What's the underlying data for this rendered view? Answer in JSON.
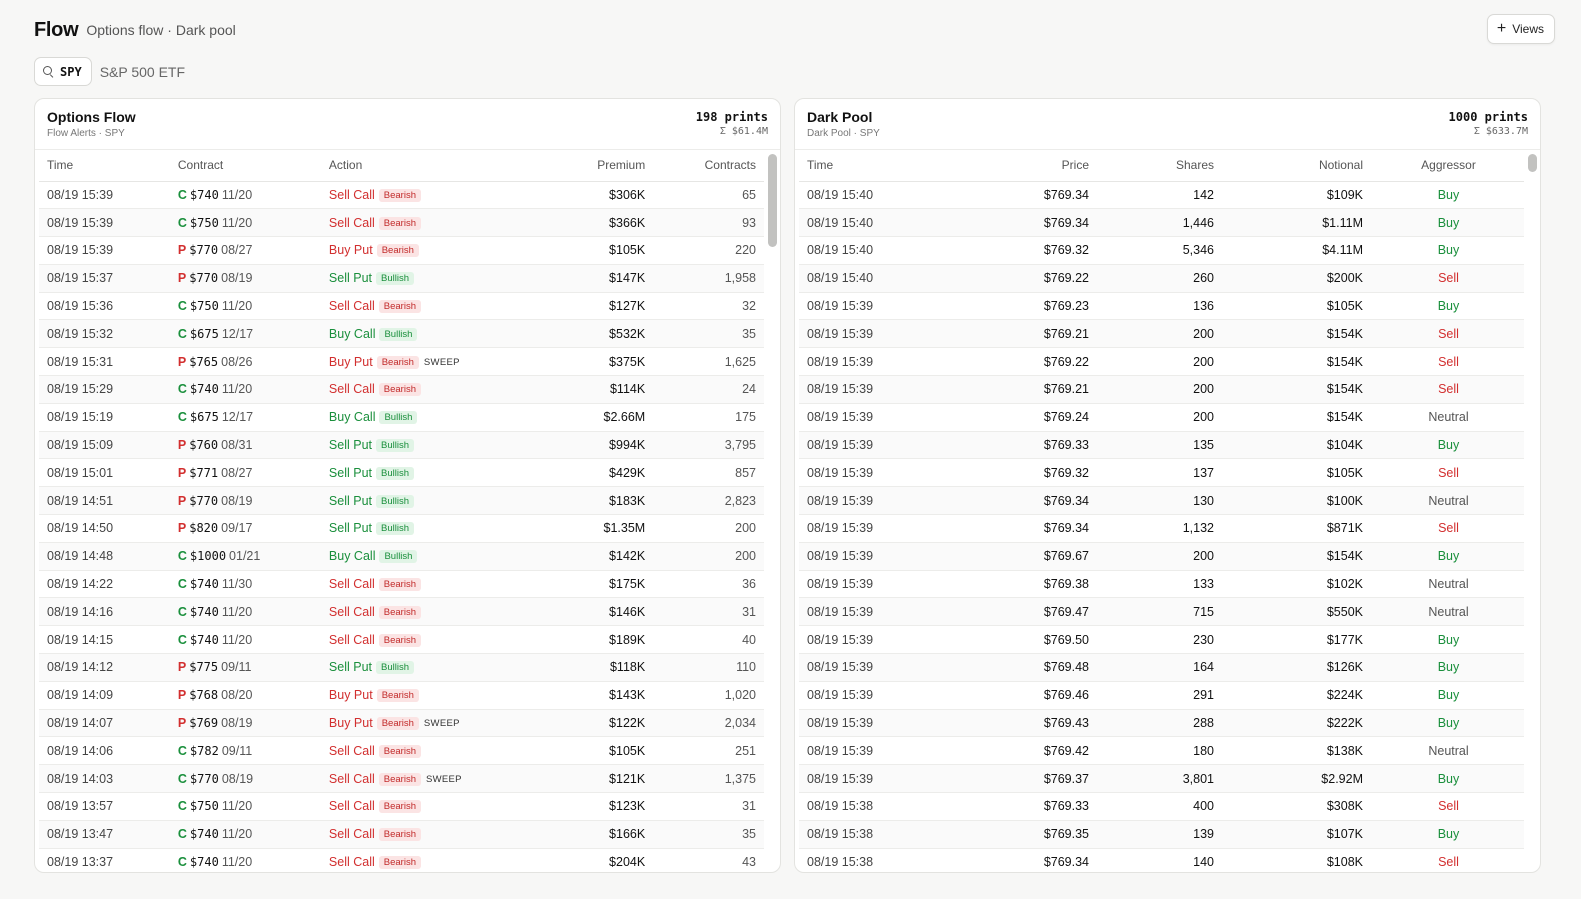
{
  "header": {
    "title": "Flow",
    "subtitle": "Options flow · Dark pool",
    "views_label": "Views"
  },
  "ticker": {
    "symbol": "SPY",
    "name": "S&P 500 ETF"
  },
  "options_panel": {
    "title": "Options Flow",
    "subtitle": "Flow Alerts · SPY",
    "count": "198 prints",
    "sum": "Σ $61.4M",
    "columns": [
      "Time",
      "Contract",
      "Action",
      "Premium",
      "Contracts"
    ],
    "rows": [
      {
        "time": "08/19 15:39",
        "side": "C",
        "strike": "$740",
        "exp": "11/20",
        "action": "Sell Call",
        "sentiment": "Bearish",
        "sweep": "",
        "premium": "$306K",
        "contracts": "65"
      },
      {
        "time": "08/19 15:39",
        "side": "C",
        "strike": "$750",
        "exp": "11/20",
        "action": "Sell Call",
        "sentiment": "Bearish",
        "sweep": "",
        "premium": "$366K",
        "contracts": "93"
      },
      {
        "time": "08/19 15:39",
        "side": "P",
        "strike": "$770",
        "exp": "08/27",
        "action": "Buy Put",
        "sentiment": "Bearish",
        "sweep": "",
        "premium": "$105K",
        "contracts": "220"
      },
      {
        "time": "08/19 15:37",
        "side": "P",
        "strike": "$770",
        "exp": "08/19",
        "action": "Sell Put",
        "sentiment": "Bullish",
        "sweep": "",
        "premium": "$147K",
        "contracts": "1,958"
      },
      {
        "time": "08/19 15:36",
        "side": "C",
        "strike": "$750",
        "exp": "11/20",
        "action": "Sell Call",
        "sentiment": "Bearish",
        "sweep": "",
        "premium": "$127K",
        "contracts": "32"
      },
      {
        "time": "08/19 15:32",
        "side": "C",
        "strike": "$675",
        "exp": "12/17",
        "action": "Buy Call",
        "sentiment": "Bullish",
        "sweep": "",
        "premium": "$532K",
        "contracts": "35"
      },
      {
        "time": "08/19 15:31",
        "side": "P",
        "strike": "$765",
        "exp": "08/26",
        "action": "Buy Put",
        "sentiment": "Bearish",
        "sweep": "SWEEP",
        "premium": "$375K",
        "contracts": "1,625"
      },
      {
        "time": "08/19 15:29",
        "side": "C",
        "strike": "$740",
        "exp": "11/20",
        "action": "Sell Call",
        "sentiment": "Bearish",
        "sweep": "",
        "premium": "$114K",
        "contracts": "24"
      },
      {
        "time": "08/19 15:19",
        "side": "C",
        "strike": "$675",
        "exp": "12/17",
        "action": "Buy Call",
        "sentiment": "Bullish",
        "sweep": "",
        "premium": "$2.66M",
        "contracts": "175"
      },
      {
        "time": "08/19 15:09",
        "side": "P",
        "strike": "$760",
        "exp": "08/31",
        "action": "Sell Put",
        "sentiment": "Bullish",
        "sweep": "",
        "premium": "$994K",
        "contracts": "3,795"
      },
      {
        "time": "08/19 15:01",
        "side": "P",
        "strike": "$771",
        "exp": "08/27",
        "action": "Sell Put",
        "sentiment": "Bullish",
        "sweep": "",
        "premium": "$429K",
        "contracts": "857"
      },
      {
        "time": "08/19 14:51",
        "side": "P",
        "strike": "$770",
        "exp": "08/19",
        "action": "Sell Put",
        "sentiment": "Bullish",
        "sweep": "",
        "premium": "$183K",
        "contracts": "2,823"
      },
      {
        "time": "08/19 14:50",
        "side": "P",
        "strike": "$820",
        "exp": "09/17",
        "action": "Sell Put",
        "sentiment": "Bullish",
        "sweep": "",
        "premium": "$1.35M",
        "contracts": "200"
      },
      {
        "time": "08/19 14:48",
        "side": "C",
        "strike": "$1000",
        "exp": "01/21",
        "action": "Buy Call",
        "sentiment": "Bullish",
        "sweep": "",
        "premium": "$142K",
        "contracts": "200"
      },
      {
        "time": "08/19 14:22",
        "side": "C",
        "strike": "$740",
        "exp": "11/30",
        "action": "Sell Call",
        "sentiment": "Bearish",
        "sweep": "",
        "premium": "$175K",
        "contracts": "36"
      },
      {
        "time": "08/19 14:16",
        "side": "C",
        "strike": "$740",
        "exp": "11/20",
        "action": "Sell Call",
        "sentiment": "Bearish",
        "sweep": "",
        "premium": "$146K",
        "contracts": "31"
      },
      {
        "time": "08/19 14:15",
        "side": "C",
        "strike": "$740",
        "exp": "11/20",
        "action": "Sell Call",
        "sentiment": "Bearish",
        "sweep": "",
        "premium": "$189K",
        "contracts": "40"
      },
      {
        "time": "08/19 14:12",
        "side": "P",
        "strike": "$775",
        "exp": "09/11",
        "action": "Sell Put",
        "sentiment": "Bullish",
        "sweep": "",
        "premium": "$118K",
        "contracts": "110"
      },
      {
        "time": "08/19 14:09",
        "side": "P",
        "strike": "$768",
        "exp": "08/20",
        "action": "Buy Put",
        "sentiment": "Bearish",
        "sweep": "",
        "premium": "$143K",
        "contracts": "1,020"
      },
      {
        "time": "08/19 14:07",
        "side": "P",
        "strike": "$769",
        "exp": "08/19",
        "action": "Buy Put",
        "sentiment": "Bearish",
        "sweep": "SWEEP",
        "premium": "$122K",
        "contracts": "2,034"
      },
      {
        "time": "08/19 14:06",
        "side": "C",
        "strike": "$782",
        "exp": "09/11",
        "action": "Sell Call",
        "sentiment": "Bearish",
        "sweep": "",
        "premium": "$105K",
        "contracts": "251"
      },
      {
        "time": "08/19 14:03",
        "side": "C",
        "strike": "$770",
        "exp": "08/19",
        "action": "Sell Call",
        "sentiment": "Bearish",
        "sweep": "SWEEP",
        "premium": "$121K",
        "contracts": "1,375"
      },
      {
        "time": "08/19 13:57",
        "side": "C",
        "strike": "$750",
        "exp": "11/20",
        "action": "Sell Call",
        "sentiment": "Bearish",
        "sweep": "",
        "premium": "$123K",
        "contracts": "31"
      },
      {
        "time": "08/19 13:47",
        "side": "C",
        "strike": "$740",
        "exp": "11/20",
        "action": "Sell Call",
        "sentiment": "Bearish",
        "sweep": "",
        "premium": "$166K",
        "contracts": "35"
      },
      {
        "time": "08/19 13:37",
        "side": "C",
        "strike": "$740",
        "exp": "11/20",
        "action": "Sell Call",
        "sentiment": "Bearish",
        "sweep": "",
        "premium": "$204K",
        "contracts": "43"
      }
    ]
  },
  "darkpool_panel": {
    "title": "Dark Pool",
    "subtitle": "Dark Pool · SPY",
    "count": "1000 prints",
    "sum": "Σ $633.7M",
    "columns": [
      "Time",
      "Price",
      "Shares",
      "Notional",
      "Aggressor"
    ],
    "rows": [
      {
        "time": "08/19 15:40",
        "price": "$769.34",
        "shares": "142",
        "notional": "$109K",
        "aggressor": "Buy"
      },
      {
        "time": "08/19 15:40",
        "price": "$769.34",
        "shares": "1,446",
        "notional": "$1.11M",
        "aggressor": "Buy"
      },
      {
        "time": "08/19 15:40",
        "price": "$769.32",
        "shares": "5,346",
        "notional": "$4.11M",
        "aggressor": "Buy"
      },
      {
        "time": "08/19 15:40",
        "price": "$769.22",
        "shares": "260",
        "notional": "$200K",
        "aggressor": "Sell"
      },
      {
        "time": "08/19 15:39",
        "price": "$769.23",
        "shares": "136",
        "notional": "$105K",
        "aggressor": "Buy"
      },
      {
        "time": "08/19 15:39",
        "price": "$769.21",
        "shares": "200",
        "notional": "$154K",
        "aggressor": "Sell"
      },
      {
        "time": "08/19 15:39",
        "price": "$769.22",
        "shares": "200",
        "notional": "$154K",
        "aggressor": "Sell"
      },
      {
        "time": "08/19 15:39",
        "price": "$769.21",
        "shares": "200",
        "notional": "$154K",
        "aggressor": "Sell"
      },
      {
        "time": "08/19 15:39",
        "price": "$769.24",
        "shares": "200",
        "notional": "$154K",
        "aggressor": "Neutral"
      },
      {
        "time": "08/19 15:39",
        "price": "$769.33",
        "shares": "135",
        "notional": "$104K",
        "aggressor": "Buy"
      },
      {
        "time": "08/19 15:39",
        "price": "$769.32",
        "shares": "137",
        "notional": "$105K",
        "aggressor": "Sell"
      },
      {
        "time": "08/19 15:39",
        "price": "$769.34",
        "shares": "130",
        "notional": "$100K",
        "aggressor": "Neutral"
      },
      {
        "time": "08/19 15:39",
        "price": "$769.34",
        "shares": "1,132",
        "notional": "$871K",
        "aggressor": "Sell"
      },
      {
        "time": "08/19 15:39",
        "price": "$769.67",
        "shares": "200",
        "notional": "$154K",
        "aggressor": "Buy"
      },
      {
        "time": "08/19 15:39",
        "price": "$769.38",
        "shares": "133",
        "notional": "$102K",
        "aggressor": "Neutral"
      },
      {
        "time": "08/19 15:39",
        "price": "$769.47",
        "shares": "715",
        "notional": "$550K",
        "aggressor": "Neutral"
      },
      {
        "time": "08/19 15:39",
        "price": "$769.50",
        "shares": "230",
        "notional": "$177K",
        "aggressor": "Buy"
      },
      {
        "time": "08/19 15:39",
        "price": "$769.48",
        "shares": "164",
        "notional": "$126K",
        "aggressor": "Buy"
      },
      {
        "time": "08/19 15:39",
        "price": "$769.46",
        "shares": "291",
        "notional": "$224K",
        "aggressor": "Buy"
      },
      {
        "time": "08/19 15:39",
        "price": "$769.43",
        "shares": "288",
        "notional": "$222K",
        "aggressor": "Buy"
      },
      {
        "time": "08/19 15:39",
        "price": "$769.42",
        "shares": "180",
        "notional": "$138K",
        "aggressor": "Neutral"
      },
      {
        "time": "08/19 15:39",
        "price": "$769.37",
        "shares": "3,801",
        "notional": "$2.92M",
        "aggressor": "Buy"
      },
      {
        "time": "08/19 15:38",
        "price": "$769.33",
        "shares": "400",
        "notional": "$308K",
        "aggressor": "Sell"
      },
      {
        "time": "08/19 15:38",
        "price": "$769.35",
        "shares": "139",
        "notional": "$107K",
        "aggressor": "Buy"
      },
      {
        "time": "08/19 15:38",
        "price": "$769.34",
        "shares": "140",
        "notional": "$108K",
        "aggressor": "Sell"
      }
    ]
  },
  "colors": {
    "bullish": "#1a8f3c",
    "bearish": "#d22f2f",
    "neutral": "#555555"
  },
  "icons": {
    "search": "search-icon",
    "views": "plus-icon"
  }
}
